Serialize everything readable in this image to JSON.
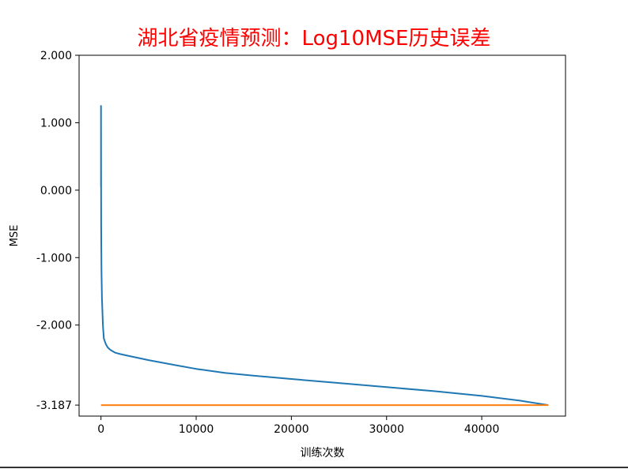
{
  "chart_data": {
    "type": "line",
    "title": "湖北省疫情预测：Log10MSE历史误差",
    "xlabel": "训练次数",
    "ylabel": "MSE",
    "xlim": [
      -2300,
      48800
    ],
    "ylim": [
      -3.35,
      2.0
    ],
    "xticks": [
      0,
      10000,
      20000,
      30000,
      40000
    ],
    "xtick_labels": [
      "0",
      "10000",
      "20000",
      "30000",
      "40000"
    ],
    "yticks": [
      2.0,
      1.0,
      0.0,
      -1.0,
      -2.0,
      -3.187
    ],
    "ytick_labels": [
      "2.000",
      "1.000",
      "0.000",
      "-1.000",
      "-2.000",
      "-3.187"
    ],
    "grid": false,
    "colors": {
      "series1": "#1f77b4",
      "series2": "#ff7f0e",
      "title": "#ff0000"
    },
    "series": [
      {
        "color": "#1f77b4",
        "x": [
          0,
          0,
          0,
          0,
          20,
          50,
          100,
          200,
          300,
          500,
          700,
          1000,
          1500,
          2000,
          3000,
          5000,
          8000,
          10000,
          13000,
          16000,
          20000,
          25000,
          30000,
          35000,
          40000,
          44000,
          47000
        ],
        "y": [
          0.05,
          1.25,
          0.05,
          1.22,
          -0.5,
          -1.2,
          -1.6,
          -2.0,
          -2.2,
          -2.28,
          -2.33,
          -2.37,
          -2.41,
          -2.43,
          -2.46,
          -2.52,
          -2.6,
          -2.65,
          -2.71,
          -2.75,
          -2.8,
          -2.86,
          -2.92,
          -2.98,
          -3.05,
          -3.12,
          -3.187
        ]
      },
      {
        "color": "#ff7f0e",
        "x": [
          0,
          47000
        ],
        "y": [
          -3.187,
          -3.187
        ]
      }
    ]
  }
}
